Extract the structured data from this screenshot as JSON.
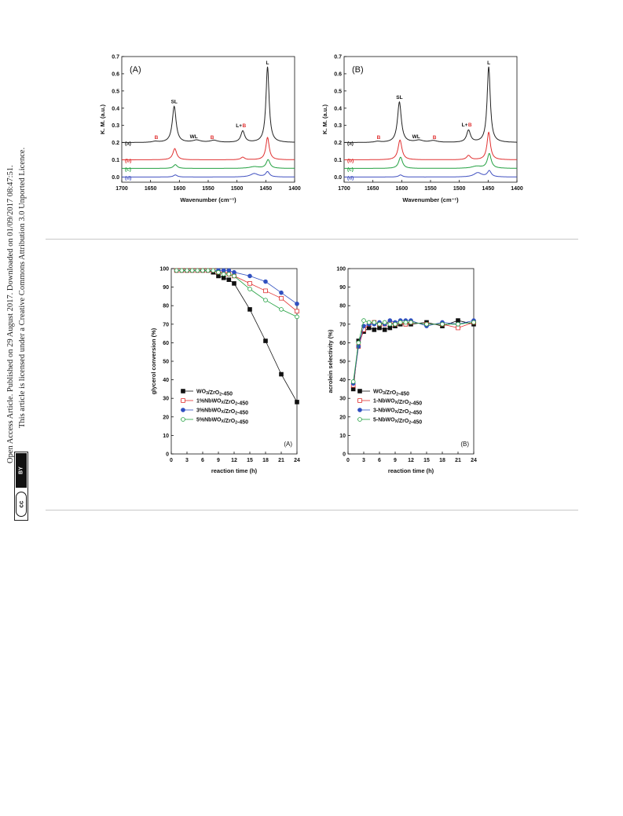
{
  "sidebar": {
    "line1": "Open Access Article. Published on 29 August 2017. Downloaded on 01/09/2017 08:47:51.",
    "line2": "This article is licensed under a Creative Commons Attribution 3.0 Unported Licence.",
    "cc_top": "BY",
    "cc_symbol": "cc"
  },
  "figure1": {
    "panels": [
      {
        "panel_label": "(A)",
        "ylabel": "K. M. (a.u.)",
        "xlabel": "Wavenumber (cm⁻¹)",
        "xticks": [
          "1700",
          "1650",
          "1600",
          "1550",
          "1500",
          "1450",
          "1400"
        ],
        "yticks": [
          "0.0",
          "0.1",
          "0.2",
          "0.3",
          "0.4",
          "0.5",
          "0.6",
          "0.7"
        ],
        "curve_labels": [
          "(a)",
          "(b)",
          "(c)",
          "(d)"
        ],
        "annotations": {
          "SL": "SL",
          "WL": "WL",
          "L": "L",
          "LB_L": "L+",
          "B": "B"
        }
      },
      {
        "panel_label": "(B)",
        "ylabel": "K. M. (a.u.)",
        "xlabel": "Wavenumber (cm⁻¹)",
        "xticks": [
          "1700",
          "1650",
          "1600",
          "1550",
          "1500",
          "1450",
          "1400"
        ],
        "yticks": [
          "0.0",
          "0.1",
          "0.2",
          "0.3",
          "0.4",
          "0.5",
          "0.6",
          "0.7"
        ],
        "curve_labels": [
          "(a)",
          "(b)",
          "(c)",
          "(d)"
        ],
        "annotations": {
          "SL": "SL",
          "WL": "WL",
          "L": "L",
          "LB_L": "L+",
          "B": "B"
        }
      }
    ]
  },
  "figure2": {
    "panels": [
      {
        "panel_label": "(A)",
        "ylabel": "glycerol conversion (%)",
        "xlabel": "reaction time (h)",
        "xticks": [
          "0",
          "3",
          "6",
          "9",
          "12",
          "15",
          "18",
          "21",
          "24"
        ],
        "yticks": [
          "0",
          "10",
          "20",
          "30",
          "40",
          "50",
          "60",
          "70",
          "80",
          "90",
          "100"
        ],
        "legend": [
          {
            "pre": "WO",
            "sub1": "3",
            "mid": "/ZrO",
            "sub2": "2",
            "post": "-450"
          },
          {
            "pre": "1%NbWO",
            "sub1": "X",
            "mid": "/ZrO",
            "sub2": "2",
            "post": "-450"
          },
          {
            "pre": "3%NbWO",
            "sub1": "X",
            "mid": "/ZrO",
            "sub2": "2",
            "post": "-450"
          },
          {
            "pre": "5%NbWO",
            "sub1": "X",
            "mid": "/ZrO",
            "sub2": "2",
            "post": "-450"
          }
        ]
      },
      {
        "panel_label": "(B)",
        "ylabel": "acrolein selectivity (%)",
        "xlabel": "reaction time (h)",
        "xticks": [
          "0",
          "3",
          "6",
          "9",
          "12",
          "15",
          "18",
          "21",
          "24"
        ],
        "yticks": [
          "0",
          "10",
          "20",
          "30",
          "40",
          "50",
          "60",
          "70",
          "80",
          "90",
          "100"
        ],
        "legend": [
          {
            "pre": "WO",
            "sub1": "3",
            "mid": "/ZrO",
            "sub2": "2",
            "post": "-450"
          },
          {
            "pre": "1-NbWO",
            "sub1": "X",
            "mid": "/ZrO",
            "sub2": "2",
            "post": "-450"
          },
          {
            "pre": "3-NbWO",
            "sub1": "X",
            "mid": "/ZrO",
            "sub2": "2",
            "post": "-450"
          },
          {
            "pre": "5-NbWO",
            "sub1": "X",
            "mid": "/ZrO",
            "sub2": "2",
            "post": "-450"
          }
        ]
      }
    ]
  },
  "colors": {
    "a": "#222222",
    "b": "#e03030",
    "c": "#22a040",
    "d": "#4050c0",
    "B_label": "#e03030"
  },
  "chart_data": [
    {
      "type": "line",
      "panel": "(A)",
      "xlabel": "Wavenumber (cm⁻¹)",
      "ylabel": "K. M. (a.u.)",
      "xlim": [
        1700,
        1400
      ],
      "ylim": [
        -0.03,
        0.7
      ],
      "series": [
        {
          "name": "(a)",
          "color": "#222222",
          "baseline": 0.2,
          "peaks": [
            [
              1642,
              0.006,
              6
            ],
            [
              1609,
              0.21,
              4
            ],
            [
              1570,
              0.013,
              8
            ],
            [
              1540,
              0.012,
              8
            ],
            [
              1490,
              0.066,
              4
            ],
            [
              1447,
              0.44,
              3.3
            ]
          ]
        },
        {
          "name": "(b)",
          "color": "#e03030",
          "baseline": 0.1,
          "peaks": [
            [
              1608,
              0.065,
              4
            ],
            [
              1490,
              0.015,
              4
            ],
            [
              1447,
              0.13,
              3.5
            ]
          ]
        },
        {
          "name": "(c)",
          "color": "#22a040",
          "baseline": 0.05,
          "peaks": [
            [
              1607,
              0.022,
              4
            ],
            [
              1470,
              0.01,
              10
            ],
            [
              1446,
              0.05,
              4
            ]
          ]
        },
        {
          "name": "(d)",
          "color": "#4050c0",
          "baseline": 0.0,
          "peaks": [
            [
              1607,
              0.012,
              4
            ],
            [
              1470,
              0.02,
              8
            ],
            [
              1447,
              0.03,
              4
            ]
          ]
        }
      ]
    },
    {
      "type": "line",
      "panel": "(B)",
      "xlabel": "Wavenumber (cm⁻¹)",
      "ylabel": "K. M. (a.u.)",
      "xlim": [
        1700,
        1400
      ],
      "ylim": [
        -0.03,
        0.7
      ],
      "series": [
        {
          "name": "(a)",
          "color": "#222222",
          "baseline": 0.2,
          "peaks": [
            [
              1642,
              0.006,
              6
            ],
            [
              1604,
              0.235,
              4
            ],
            [
              1570,
              0.012,
              8
            ],
            [
              1545,
              0.01,
              8
            ],
            [
              1484,
              0.07,
              4
            ],
            [
              1449,
              0.44,
              3.3
            ]
          ]
        },
        {
          "name": "(b)",
          "color": "#e03030",
          "baseline": 0.1,
          "peaks": [
            [
              1603,
              0.115,
              4
            ],
            [
              1484,
              0.025,
              4
            ],
            [
              1449,
              0.16,
              3.5
            ]
          ]
        },
        {
          "name": "(c)",
          "color": "#22a040",
          "baseline": 0.05,
          "peaks": [
            [
              1602,
              0.065,
              4
            ],
            [
              1470,
              0.012,
              10
            ],
            [
              1448,
              0.085,
              4
            ]
          ]
        },
        {
          "name": "(d)",
          "color": "#4050c0",
          "baseline": 0.0,
          "peaks": [
            [
              1602,
              0.012,
              4
            ],
            [
              1468,
              0.025,
              8
            ],
            [
              1448,
              0.035,
              4
            ]
          ]
        }
      ]
    },
    {
      "type": "line",
      "panel": "(A)",
      "xlabel": "reaction time (h)",
      "ylabel": "glycerol conversion (%)",
      "xlim": [
        0,
        24
      ],
      "ylim": [
        0,
        100
      ],
      "series": [
        {
          "name": "WO3/ZrO2-450",
          "color": "#111111",
          "marker": "square-filled",
          "x": [
            1,
            2,
            3,
            4,
            5,
            6,
            7,
            8,
            9,
            10,
            11,
            12,
            15,
            18,
            21,
            24
          ],
          "y": [
            99,
            99,
            99,
            99,
            99,
            99,
            99,
            98,
            96,
            95,
            94,
            92,
            78,
            61,
            43,
            28
          ]
        },
        {
          "name": "1%NbWOX/ZrO2-450",
          "color": "#e03030",
          "marker": "square-open",
          "x": [
            1,
            2,
            3,
            4,
            5,
            6,
            7,
            8,
            9,
            10,
            11,
            12,
            15,
            18,
            21,
            24
          ],
          "y": [
            99,
            99,
            99,
            99,
            99,
            99,
            99,
            99,
            98,
            98,
            97,
            96,
            92,
            88,
            84,
            77
          ]
        },
        {
          "name": "3%NbWOX/ZrO2-450",
          "color": "#3050c0",
          "marker": "circle-filled",
          "x": [
            1,
            2,
            3,
            4,
            5,
            6,
            7,
            8,
            9,
            10,
            11,
            12,
            15,
            18,
            21,
            24
          ],
          "y": [
            99,
            99,
            99,
            99,
            99,
            99,
            99,
            99,
            99,
            99,
            99,
            98,
            96,
            93,
            87,
            81
          ]
        },
        {
          "name": "5%NbWOX/ZrO2-450",
          "color": "#22a040",
          "marker": "circle-open",
          "x": [
            1,
            2,
            3,
            4,
            5,
            6,
            7,
            8,
            9,
            10,
            11,
            12,
            15,
            18,
            21,
            24
          ],
          "y": [
            99,
            99,
            99,
            99,
            99,
            99,
            99,
            99,
            98,
            97,
            97,
            96,
            89,
            83,
            78,
            74
          ]
        }
      ]
    },
    {
      "type": "line",
      "panel": "(B)",
      "xlabel": "reaction time (h)",
      "ylabel": "acrolein selectivity (%)",
      "xlim": [
        0,
        24
      ],
      "ylim": [
        0,
        100
      ],
      "series": [
        {
          "name": "WO3/ZrO2-450",
          "color": "#111111",
          "marker": "square-filled",
          "x": [
            1,
            2,
            3,
            4,
            5,
            6,
            7,
            8,
            9,
            10,
            11,
            12,
            15,
            18,
            21,
            24
          ],
          "y": [
            35,
            61,
            66,
            68,
            67,
            68,
            67,
            68,
            69,
            70,
            70,
            70,
            71,
            69,
            72,
            70
          ]
        },
        {
          "name": "1-NbWOX/ZrO2-450",
          "color": "#e03030",
          "marker": "square-open",
          "x": [
            1,
            2,
            3,
            4,
            5,
            6,
            7,
            8,
            9,
            10,
            11,
            12,
            15,
            18,
            21,
            24
          ],
          "y": [
            37,
            58,
            67,
            70,
            71,
            70,
            70,
            71,
            70,
            71,
            70,
            71,
            70,
            70,
            68,
            71
          ]
        },
        {
          "name": "3-NbWOX/ZrO2-450",
          "color": "#3050c0",
          "marker": "circle-filled",
          "x": [
            1,
            2,
            3,
            4,
            5,
            6,
            7,
            8,
            9,
            10,
            11,
            12,
            15,
            18,
            21,
            24
          ],
          "y": [
            38,
            58,
            69,
            70,
            70,
            71,
            70,
            72,
            71,
            72,
            72,
            72,
            69,
            71,
            70,
            72
          ]
        },
        {
          "name": "5-NbWOX/ZrO2-450",
          "color": "#22a040",
          "marker": "circle-open",
          "x": [
            1,
            2,
            3,
            4,
            5,
            6,
            7,
            8,
            9,
            10,
            11,
            12,
            15,
            18,
            21,
            24
          ],
          "y": [
            39,
            60,
            72,
            71,
            71,
            70,
            71,
            70,
            70,
            71,
            71,
            71,
            70,
            70,
            70,
            71
          ]
        }
      ]
    }
  ]
}
